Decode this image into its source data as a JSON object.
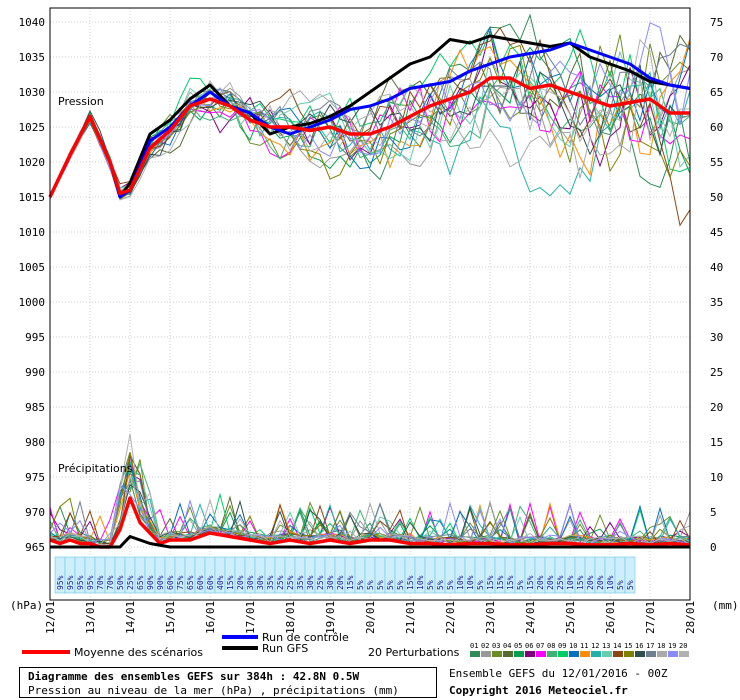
{
  "chart_data": {
    "type": "line",
    "title": "Diagramme des ensembles GEFS sur 384h : 42.8N 0.5W",
    "subtitle": "Pression au niveau de la mer (hPa) , précipitations (mm)",
    "run_info": "Ensemble GEFS du 12/01/2016 - 00Z",
    "copyright": "Copyright 2016 Meteociel.fr",
    "ylabel_left": "(hPa)",
    "ylabel_right": "(mm)",
    "pressure_label": "Pression",
    "precip_label": "Précipitations",
    "left_ticks": [
      965,
      970,
      975,
      980,
      985,
      990,
      995,
      1000,
      1005,
      1010,
      1015,
      1020,
      1025,
      1030,
      1035,
      1040
    ],
    "right_ticks": [
      0,
      5,
      10,
      15,
      20,
      25,
      30,
      35,
      40,
      45,
      50,
      55,
      60,
      65,
      70,
      75
    ],
    "ylim_pressure": [
      965,
      1042
    ],
    "ylim_precip": [
      0,
      77
    ],
    "x_ticks": [
      "12/01",
      "13/01",
      "14/01",
      "15/01",
      "16/01",
      "17/01",
      "18/01",
      "19/01",
      "20/01",
      "21/01",
      "22/01",
      "23/01",
      "24/01",
      "25/01",
      "26/01",
      "27/01",
      "28/01"
    ],
    "x_hours": [
      0,
      24,
      48,
      72,
      96,
      120,
      144,
      168,
      192,
      216,
      240,
      264,
      288,
      312,
      336,
      360,
      384
    ],
    "grid": true,
    "precip_probabilities": [
      "95%",
      "95%",
      "95%",
      "95%",
      "70%",
      "70%",
      "50%",
      "25%",
      "65%",
      "90%",
      "90%",
      "60%",
      "75%",
      "65%",
      "60%",
      "60%",
      "40%",
      "15%",
      "20%",
      "30%",
      "30%",
      "35%",
      "25%",
      "25%",
      "35%",
      "30%",
      "25%",
      "30%",
      "20%",
      "15%",
      "5%",
      "5%",
      "5%",
      "5%",
      "5%",
      "15%",
      "10%",
      "5%",
      "5%",
      "5%",
      "10%",
      "10%",
      "5%",
      "15%",
      "15%",
      "15%",
      "5%",
      "15%",
      "20%",
      "20%",
      "25%",
      "10%",
      "15%",
      "20%",
      "20%",
      "10%",
      "5%",
      "5%"
    ],
    "legend": {
      "mean": "Moyenne des scénarios",
      "control": "Run de contrôle",
      "gfs": "Run GFS",
      "perturbations": "20 Perturbations",
      "perturbation_ids": [
        "01",
        "02",
        "03",
        "04",
        "05",
        "06",
        "07",
        "08",
        "09",
        "10",
        "11",
        "12",
        "13",
        "14",
        "15",
        "16",
        "17",
        "18",
        "19",
        "20"
      ],
      "perturbation_colors": [
        "#2e8b57",
        "#999999",
        "#6b8e23",
        "#556b2f",
        "#00a050",
        "#800080",
        "#ff00ff",
        "#3cb371",
        "#00cc66",
        "#0070c0",
        "#ff8c00",
        "#20b2aa",
        "#66cdaa",
        "#8b4513",
        "#808000",
        "#2f4f4f",
        "#708090",
        "#a9a9a9",
        "#8a8aff",
        "#b0b0b0"
      ]
    },
    "colors": {
      "mean": "#ff0000",
      "control": "#0000ff",
      "gfs": "#000000"
    },
    "series": [
      {
        "name": "Run GFS",
        "kind": "pressure",
        "x": [
          0,
          12,
          24,
          36,
          42,
          48,
          60,
          72,
          84,
          96,
          108,
          120,
          132,
          144,
          156,
          168,
          180,
          192,
          204,
          216,
          228,
          240,
          252,
          264,
          276,
          288,
          300,
          312,
          324,
          336,
          348,
          360,
          372,
          384
        ],
        "values": [
          1015,
          1021,
          1026.5,
          1020,
          1015,
          1017,
          1024,
          1026,
          1029,
          1031,
          1028,
          1027,
          1024,
          1025,
          1025.5,
          1026.5,
          1028,
          1030,
          1032,
          1034,
          1035,
          1037.5,
          1037,
          1038,
          1037.5,
          1037,
          1036.5,
          1037,
          1035,
          1034,
          1033,
          1031.5,
          1031,
          1030.5
        ]
      },
      {
        "name": "Run de contrôle",
        "kind": "pressure",
        "x": [
          0,
          12,
          24,
          36,
          42,
          48,
          60,
          72,
          84,
          96,
          108,
          120,
          132,
          144,
          156,
          168,
          180,
          192,
          204,
          216,
          228,
          240,
          252,
          264,
          276,
          288,
          300,
          312,
          324,
          336,
          348,
          360,
          372,
          384
        ],
        "values": [
          1015,
          1021,
          1026.5,
          1020,
          1015,
          1016,
          1023,
          1025,
          1028,
          1030,
          1028,
          1027,
          1025,
          1024,
          1025,
          1026,
          1027.5,
          1028,
          1029,
          1030.5,
          1031,
          1031.5,
          1033,
          1034,
          1035,
          1035.5,
          1036,
          1037,
          1036,
          1035,
          1034,
          1032,
          1031,
          1030.5
        ]
      },
      {
        "name": "Moyenne des scénarios",
        "kind": "pressure",
        "x": [
          0,
          12,
          24,
          36,
          42,
          48,
          60,
          72,
          84,
          96,
          108,
          120,
          132,
          144,
          156,
          168,
          180,
          192,
          204,
          216,
          228,
          240,
          252,
          264,
          276,
          288,
          300,
          312,
          324,
          336,
          348,
          360,
          372,
          384
        ],
        "values": [
          1015,
          1021,
          1026.5,
          1020,
          1015.5,
          1016,
          1022,
          1024.5,
          1028,
          1029,
          1028,
          1026,
          1025,
          1025,
          1024.5,
          1025,
          1024,
          1024,
          1025,
          1026.5,
          1028,
          1029,
          1030,
          1032,
          1032,
          1030.5,
          1031,
          1030,
          1029,
          1028,
          1028.5,
          1029,
          1027,
          1027
        ]
      },
      {
        "name": "Moyenne des scénarios",
        "kind": "precip",
        "x": [
          0,
          6,
          12,
          18,
          24,
          30,
          36,
          42,
          48,
          54,
          60,
          66,
          72,
          84,
          96,
          108,
          120,
          132,
          144,
          156,
          168,
          180,
          192,
          204,
          216,
          228,
          240,
          252,
          264,
          276,
          288,
          300,
          312,
          324,
          336,
          348,
          360,
          372,
          384
        ],
        "values": [
          1,
          0.5,
          1,
          0.5,
          0.5,
          0,
          0,
          2.5,
          7,
          3.5,
          2,
          0.5,
          1,
          1,
          2,
          1.5,
          1,
          0.5,
          1,
          0.5,
          1,
          0.5,
          1,
          1,
          0.5,
          0.5,
          0.3,
          0.5,
          0.5,
          0.3,
          0.3,
          0.5,
          0.5,
          0.3,
          0.3,
          0.5,
          0.3,
          0.5,
          0.3
        ]
      },
      {
        "name": "Run GFS",
        "kind": "precip",
        "x": [
          0,
          24,
          36,
          42,
          48,
          60,
          72,
          96,
          120,
          144,
          168,
          192,
          216,
          240,
          264,
          288,
          312,
          336,
          360,
          384
        ],
        "values": [
          0,
          0,
          0,
          0,
          1.5,
          0.5,
          0,
          0,
          0,
          0,
          0,
          0,
          0,
          0,
          0,
          0,
          0,
          0,
          0,
          0
        ]
      }
    ]
  }
}
